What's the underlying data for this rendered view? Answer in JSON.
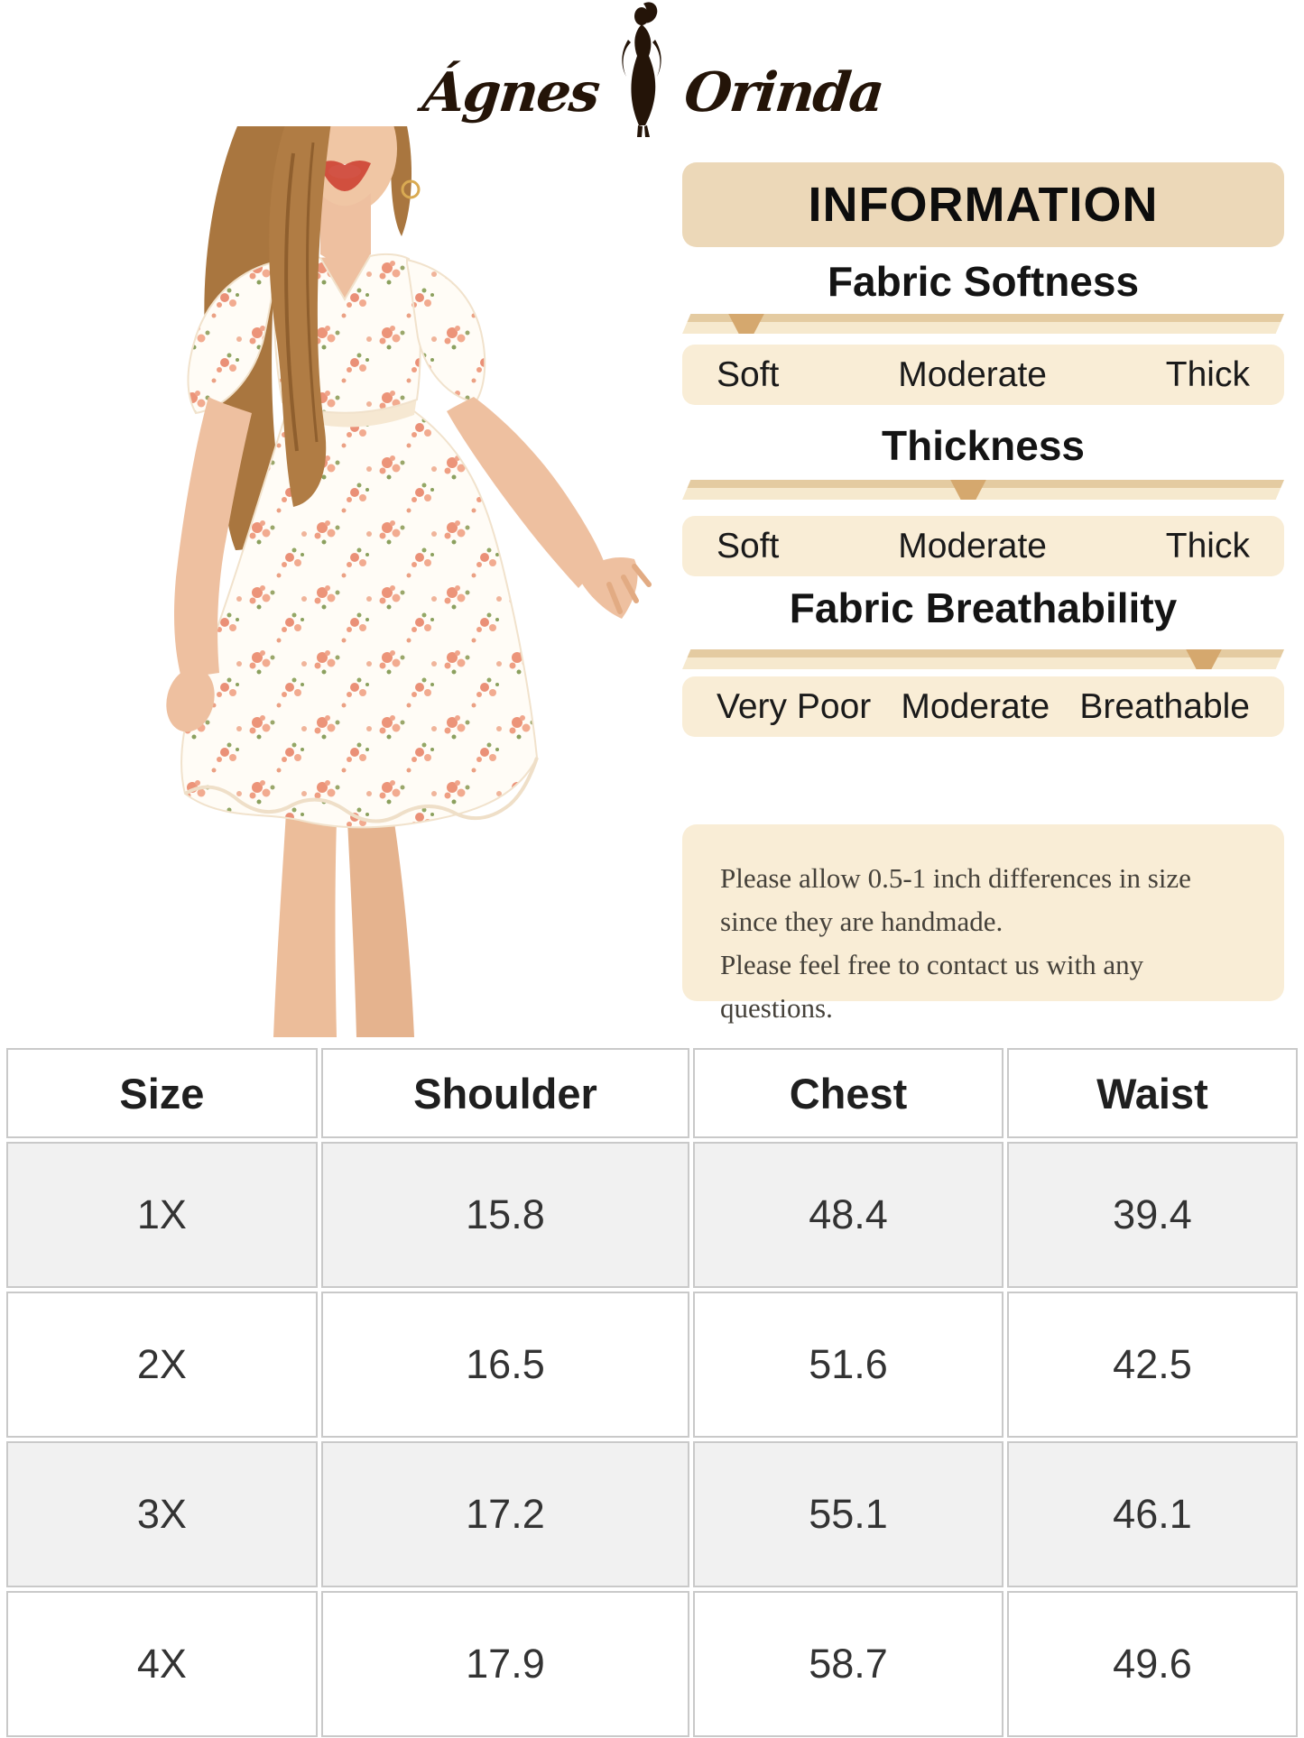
{
  "brand": {
    "left_word": "Ágnes",
    "right_word": "Orinda"
  },
  "info_panel": {
    "title": "INFORMATION",
    "sections": [
      {
        "heading": "Fabric Softness",
        "labels": [
          "Soft",
          "Moderate",
          "Thick"
        ],
        "selected": "Soft",
        "indicator_left_pct": 10.6
      },
      {
        "heading": "Thickness",
        "labels": [
          "Soft",
          "Moderate",
          "Thick"
        ],
        "selected": "Moderate",
        "indicator_left_pct": 47.5
      },
      {
        "heading": "Fabric Breathability",
        "labels": [
          "Very Poor",
          "Moderate",
          "Breathable"
        ],
        "selected": "Breathable",
        "indicator_left_pct": 86.7
      }
    ],
    "note_lines": [
      "Please allow 0.5-1 inch differences in size",
      "since they are handmade.",
      "Please feel free to contact us with any questions."
    ]
  },
  "size_table": {
    "headers": [
      "Size",
      "Shoulder",
      "Chest",
      "Waist"
    ],
    "rows": [
      [
        "1X",
        "15.8",
        "48.4",
        "39.4"
      ],
      [
        "2X",
        "16.5",
        "51.6",
        "42.5"
      ],
      [
        "3X",
        "17.2",
        "55.1",
        "46.1"
      ],
      [
        "4X",
        "17.9",
        "58.7",
        "49.6"
      ]
    ]
  },
  "colors": {
    "header_box": "#ecd8b8",
    "label_row": "#f9edd6",
    "ribbon_dark": "#e4cba1",
    "ribbon_light": "#f6e9ce",
    "indicator": "#d5a86e",
    "table_border": "#c9c9c9",
    "table_alt_row": "#f1f1f1",
    "logo_ink": "#241408"
  }
}
